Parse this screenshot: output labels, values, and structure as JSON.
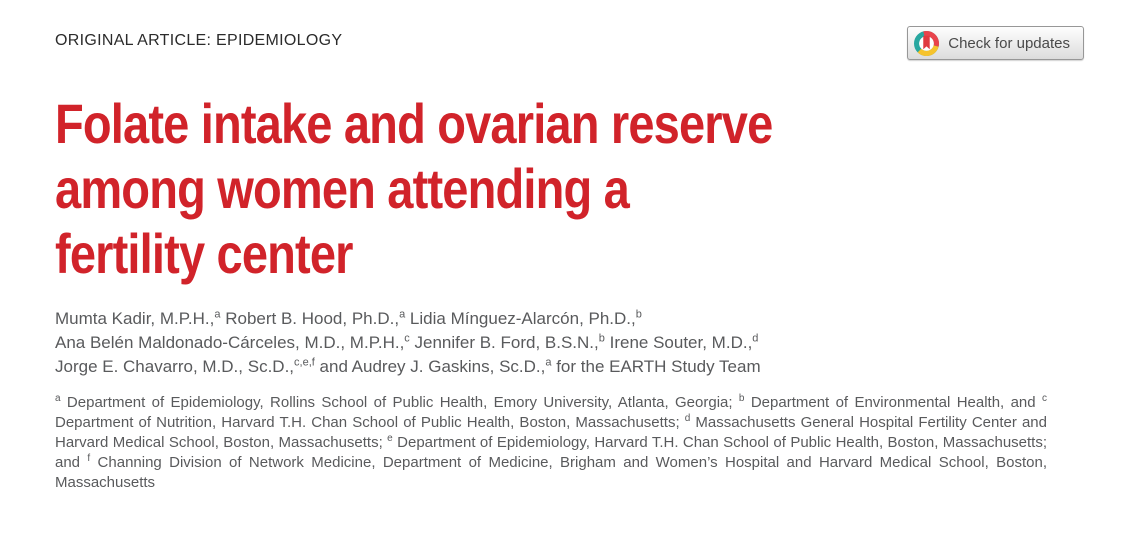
{
  "header": {
    "category": "ORIGINAL ARTICLE: EPIDEMIOLOGY",
    "check_for_updates_label": "Check for updates"
  },
  "colors": {
    "title_red": "#d1232a",
    "body_gray": "#595a5c",
    "crossmark_teal": "#28a7a0",
    "crossmark_red": "#e9444c",
    "crossmark_yellow": "#f6c32d",
    "crossmark_bookmark": "#e03a40"
  },
  "title": {
    "lines": [
      "Folate intake and ovarian reserve",
      "among women attending a",
      "fertility center"
    ]
  },
  "authors": {
    "lines": [
      [
        {
          "t": "Mumta Kadir, M.P.H.,"
        },
        {
          "s": "a"
        },
        {
          "t": " Robert B. Hood, Ph.D.,"
        },
        {
          "s": "a"
        },
        {
          "t": " Lidia Mínguez-Alarcón, Ph.D.,"
        },
        {
          "s": "b"
        }
      ],
      [
        {
          "t": "Ana Belén Maldonado-Cárceles, M.D., M.P.H.,"
        },
        {
          "s": "c"
        },
        {
          "t": " Jennifer B. Ford, B.S.N.,"
        },
        {
          "s": "b"
        },
        {
          "t": " Irene Souter, M.D.,"
        },
        {
          "s": "d"
        }
      ],
      [
        {
          "t": "Jorge E. Chavarro, M.D., Sc.D.,"
        },
        {
          "s": "c,e,f"
        },
        {
          "t": " and Audrey J. Gaskins, Sc.D.,"
        },
        {
          "s": "a"
        },
        {
          "t": " for the EARTH Study Team"
        }
      ]
    ]
  },
  "affiliations": {
    "segments": [
      {
        "s": "a"
      },
      {
        "t": " Department of Epidemiology, Rollins School of Public Health, Emory University, Atlanta, Georgia; "
      },
      {
        "s": "b"
      },
      {
        "t": " Department of Environmental Health, and "
      },
      {
        "s": "c"
      },
      {
        "t": " Department of Nutrition, Harvard T.H. Chan School of Public Health, Boston, Massachusetts; "
      },
      {
        "s": "d"
      },
      {
        "t": " Massachusetts General Hospital Fertility Center and Harvard Medical School, Boston, Massachusetts; "
      },
      {
        "s": "e"
      },
      {
        "t": " Department of Epidemiology, Harvard T.H. Chan School of Public Health, Boston, Massachusetts; and "
      },
      {
        "s": "f"
      },
      {
        "t": " Channing Division of Network Medicine, Department of Medicine, Brigham and Women’s Hospital and Harvard Medical School, Boston, Massachusetts"
      }
    ]
  }
}
